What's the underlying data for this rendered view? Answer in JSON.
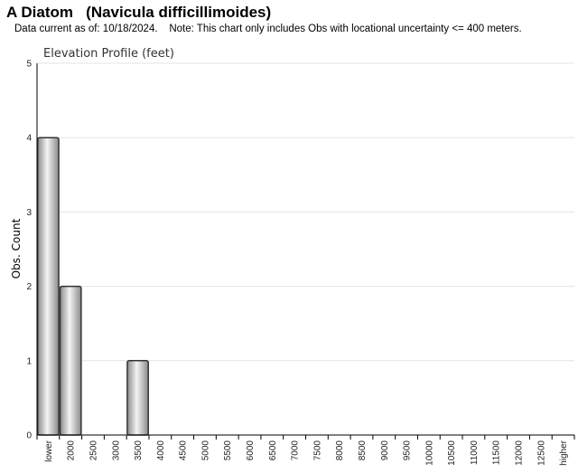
{
  "header": {
    "title": "A Diatom   (Navicula difficillimoides)",
    "subtitle": "Data current as of: 10/18/2024.    Note: This chart only includes Obs with locational uncertainty <= 400 meters."
  },
  "chart_data": {
    "type": "bar",
    "title": "Elevation Profile (feet)",
    "xlabel": "",
    "ylabel": "Obs. Count",
    "ylim": [
      0,
      5
    ],
    "yticks": [
      0,
      1,
      2,
      3,
      4,
      5
    ],
    "grid": true,
    "categories": [
      "lower",
      "2000",
      "2500",
      "3000",
      "3500",
      "4000",
      "4500",
      "5000",
      "5500",
      "6000",
      "6500",
      "7000",
      "7500",
      "8000",
      "8500",
      "9000",
      "9500",
      "10000",
      "10500",
      "11000",
      "11500",
      "12000",
      "12500",
      "higher"
    ],
    "values": [
      4,
      2,
      0,
      0,
      1,
      0,
      0,
      0,
      0,
      0,
      0,
      0,
      0,
      0,
      0,
      0,
      0,
      0,
      0,
      0,
      0,
      0,
      0,
      0
    ],
    "bar_color": "#c8c8c8"
  }
}
